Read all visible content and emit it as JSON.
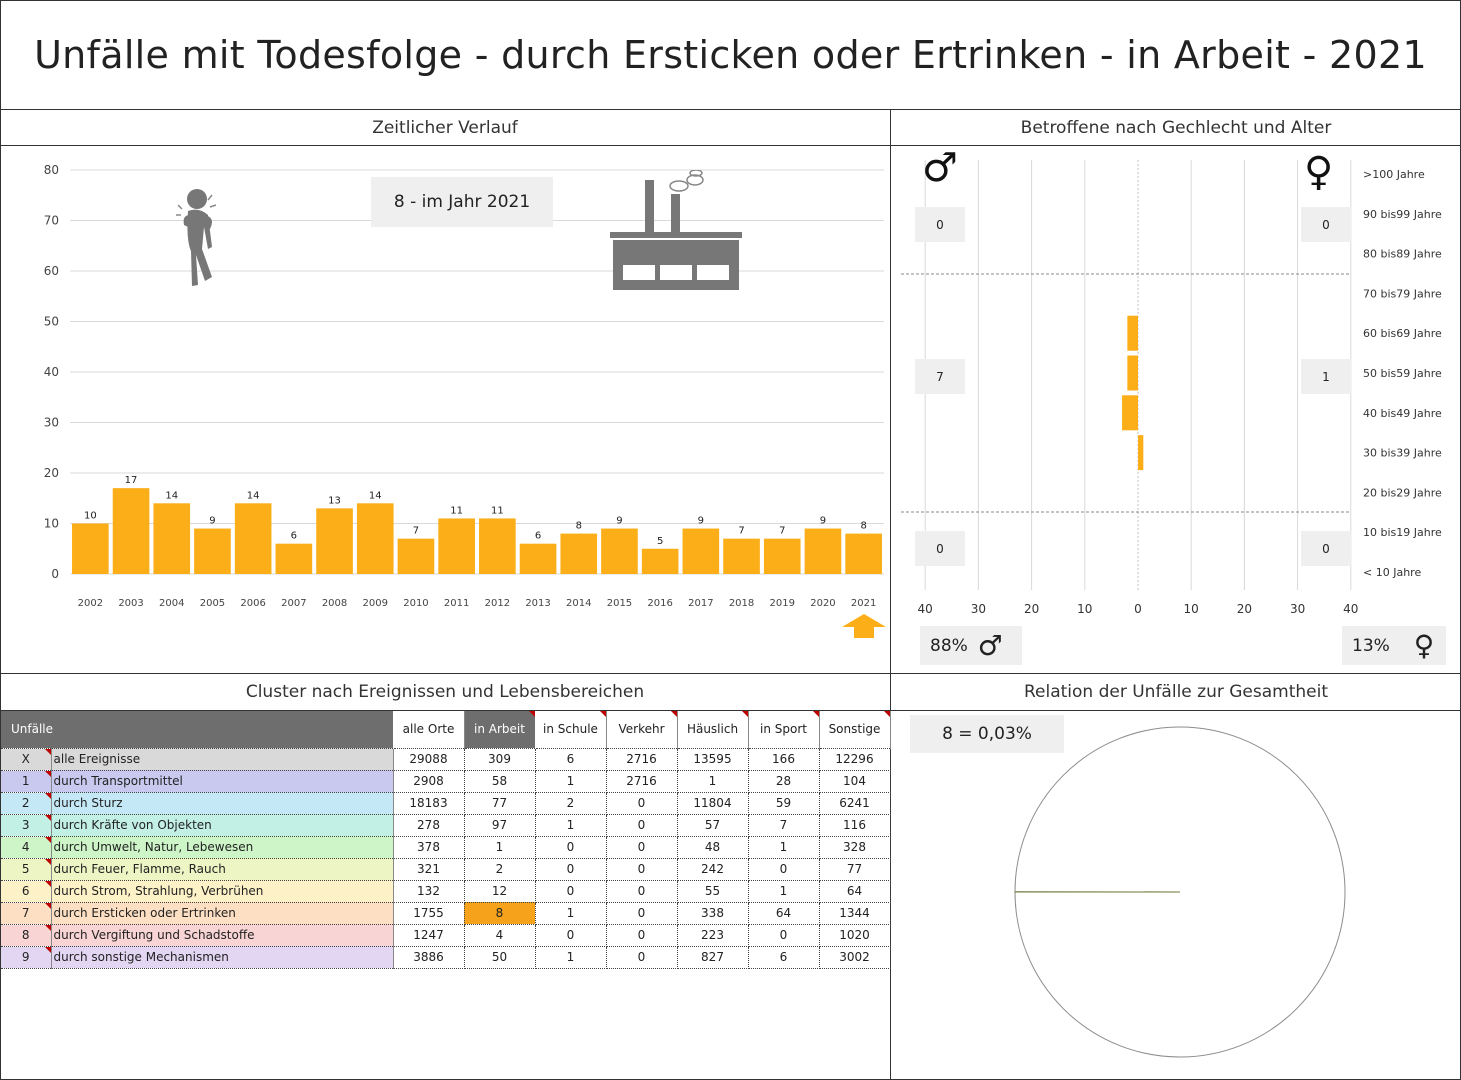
{
  "title": "Unfälle mit Todesfolge - durch Ersticken oder Ertrinken - in Arbeit - 2021",
  "timeline": {
    "section_title": "Zeitlicher Verlauf",
    "highlight_box": "8 - im Jahr 2021",
    "person_icon": "choking-person-icon",
    "factory_icon": "factory-icon",
    "arrow_icon": "arrow-up-icon",
    "accent_color": "#FBAE17"
  },
  "demographics": {
    "section_title": "Betroffene nach Gechlecht und Alter",
    "male_symbol": "♂",
    "female_symbol": "♀",
    "male_pct": "88%",
    "female_pct": "13%",
    "male_boxes": [
      "0",
      "7",
      "0"
    ],
    "female_boxes": [
      "0",
      "1",
      "0"
    ]
  },
  "cluster": {
    "section_title": "Cluster nach Ereignissen und Lebensbereichen",
    "headers": [
      "Unfälle",
      "alle Orte",
      "in Arbeit",
      "in Schule",
      "Verkehr",
      "Häuslich",
      "in Sport",
      "Sonstige"
    ],
    "rows": [
      {
        "id": "X",
        "name": "alle Ereignisse",
        "values": [
          "29088",
          "309",
          "6",
          "2716",
          "13595",
          "166",
          "12296"
        ],
        "color": "#d9d9d9"
      },
      {
        "id": "1",
        "name": "durch Transportmittel",
        "values": [
          "2908",
          "58",
          "1",
          "2716",
          "1",
          "28",
          "104"
        ],
        "color": "#c9c9f0"
      },
      {
        "id": "2",
        "name": "durch Sturz",
        "values": [
          "18183",
          "77",
          "2",
          "0",
          "11804",
          "59",
          "6241"
        ],
        "color": "#c5e8f7"
      },
      {
        "id": "3",
        "name": "durch Kräfte von Objekten",
        "values": [
          "278",
          "97",
          "1",
          "0",
          "57",
          "7",
          "116"
        ],
        "color": "#c3f0e4"
      },
      {
        "id": "4",
        "name": "durch Umwelt, Natur, Lebewesen",
        "values": [
          "378",
          "1",
          "0",
          "0",
          "48",
          "1",
          "328"
        ],
        "color": "#cdf5c8"
      },
      {
        "id": "5",
        "name": "durch Feuer, Flamme, Rauch",
        "values": [
          "321",
          "2",
          "0",
          "0",
          "242",
          "0",
          "77"
        ],
        "color": "#eef5c4"
      },
      {
        "id": "6",
        "name": "durch Strom, Strahlung, Verbrühen",
        "values": [
          "132",
          "12",
          "0",
          "0",
          "55",
          "1",
          "64"
        ],
        "color": "#fdf1c8"
      },
      {
        "id": "7",
        "name": "durch Ersticken oder Ertrinken",
        "values": [
          "1755",
          "8",
          "1",
          "0",
          "338",
          "64",
          "1344"
        ],
        "color": "#fde0c4"
      },
      {
        "id": "8",
        "name": "durch Vergiftung und Schadstoffe",
        "values": [
          "1247",
          "4",
          "0",
          "0",
          "223",
          "0",
          "1020"
        ],
        "color": "#f8d4d4"
      },
      {
        "id": "9",
        "name": "durch sonstige Mechanismen",
        "values": [
          "3886",
          "50",
          "1",
          "0",
          "827",
          "6",
          "3002"
        ],
        "color": "#e2d6f3"
      }
    ],
    "highlight": {
      "row": 7,
      "col": 1,
      "color": "#F7A21B"
    }
  },
  "relation": {
    "section_title": "Relation der Unfälle zur Gesamtheit",
    "label": "8 =  0,03%"
  },
  "chart_data": [
    {
      "type": "bar",
      "title": "Zeitlicher Verlauf",
      "categories": [
        "2002",
        "2003",
        "2004",
        "2005",
        "2006",
        "2007",
        "2008",
        "2009",
        "2010",
        "2011",
        "2012",
        "2013",
        "2014",
        "2015",
        "2016",
        "2017",
        "2018",
        "2019",
        "2020",
        "2021"
      ],
      "values": [
        10,
        17,
        14,
        9,
        14,
        6,
        13,
        14,
        7,
        11,
        11,
        6,
        8,
        9,
        5,
        9,
        7,
        7,
        9,
        8
      ],
      "ylim": [
        0,
        80
      ],
      "yticks": [
        "0",
        "10",
        "20",
        "30",
        "40",
        "50",
        "60",
        "70",
        "80"
      ],
      "grid": true,
      "color": "#FBAE17"
    },
    {
      "type": "bar",
      "title": "Betroffene nach Gechlecht und Alter",
      "orientation": "horizontal-diverging",
      "categories": [
        ">100 Jahre",
        "90 bis99 Jahre",
        "80 bis89 Jahre",
        "70 bis79 Jahre",
        "60 bis69 Jahre",
        "50 bis59 Jahre",
        "40 bis49 Jahre",
        "30 bis39 Jahre",
        "20 bis29 Jahre",
        "10 bis19 Jahre",
        "< 10 Jahre"
      ],
      "series": [
        {
          "name": "♂",
          "values": [
            0,
            0,
            0,
            0,
            2,
            2,
            3,
            0,
            0,
            0,
            0
          ]
        },
        {
          "name": "♀",
          "values": [
            0,
            0,
            0,
            0,
            0,
            0,
            0,
            1,
            0,
            0,
            0
          ]
        }
      ],
      "xticks": [
        "40",
        "30",
        "20",
        "10",
        "0",
        "10",
        "20",
        "30",
        "40"
      ],
      "xlim": [
        -40,
        40
      ],
      "color": "#FBAE17"
    },
    {
      "type": "pie",
      "title": "Relation der Unfälle zur Gesamtheit",
      "values": [
        8,
        29080
      ],
      "percent": "0,03%"
    }
  ]
}
